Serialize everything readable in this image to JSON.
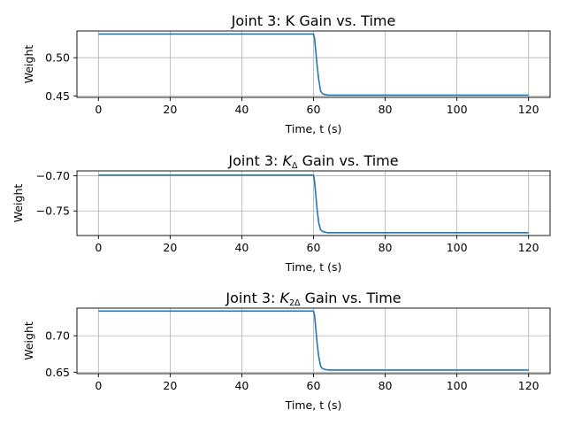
{
  "chart_data": [
    {
      "type": "line",
      "title": "Joint 3: K Gain vs. Time",
      "xlabel": "Time, t (s)",
      "ylabel": "Weight",
      "xlim": [
        -6,
        126
      ],
      "ylim": [
        0.448,
        0.535
      ],
      "xticks": [
        0,
        20,
        40,
        60,
        80,
        100,
        120
      ],
      "yticks": [
        0.45,
        0.5
      ],
      "ytick_labels": [
        "0.45",
        "0.50"
      ],
      "grid": true,
      "color": "#1f77b4",
      "series": [
        {
          "x": [
            0,
            60,
            60.3,
            60.6,
            61,
            61.5,
            62,
            62.5,
            63,
            64,
            65,
            70,
            120
          ],
          "y": [
            0.531,
            0.531,
            0.525,
            0.51,
            0.49,
            0.47,
            0.456,
            0.453,
            0.452,
            0.451,
            0.451,
            0.451,
            0.451
          ]
        }
      ]
    },
    {
      "type": "line",
      "title": "Joint 3: K_Δ Gain vs. Time",
      "title_parts": {
        "pre": "Joint 3: ",
        "sym": "K",
        "sub": "Δ",
        "post": " Gain vs. Time"
      },
      "xlabel": "Time, t (s)",
      "ylabel": "Weight",
      "xlim": [
        -6,
        126
      ],
      "ylim": [
        -0.785,
        -0.693
      ],
      "xticks": [
        0,
        20,
        40,
        60,
        80,
        100,
        120
      ],
      "yticks": [
        -0.7,
        -0.75
      ],
      "ytick_labels": [
        "−0.70",
        "−0.75"
      ],
      "grid": true,
      "color": "#1f77b4",
      "series": [
        {
          "x": [
            0,
            60,
            60.3,
            60.6,
            61,
            61.5,
            62,
            62.5,
            63,
            64,
            65,
            70,
            120
          ],
          "y": [
            -0.699,
            -0.699,
            -0.708,
            -0.725,
            -0.748,
            -0.768,
            -0.777,
            -0.779,
            -0.78,
            -0.781,
            -0.781,
            -0.781,
            -0.781
          ]
        }
      ]
    },
    {
      "type": "line",
      "title": "Joint 3: K_2Δ Gain vs. Time",
      "title_parts": {
        "pre": "Joint 3: ",
        "sym": "K",
        "sub": "2Δ",
        "post": " Gain vs. Time"
      },
      "xlabel": "Time, t (s)",
      "ylabel": "Weight",
      "xlim": [
        -6,
        126
      ],
      "ylim": [
        0.648,
        0.738
      ],
      "xticks": [
        0,
        20,
        40,
        60,
        80,
        100,
        120
      ],
      "yticks": [
        0.65,
        0.7
      ],
      "ytick_labels": [
        "0.65",
        "0.70"
      ],
      "grid": true,
      "color": "#1f77b4",
      "series": [
        {
          "x": [
            0,
            60,
            60.3,
            60.6,
            61,
            61.5,
            62,
            62.5,
            63,
            64,
            65,
            70,
            120
          ],
          "y": [
            0.734,
            0.734,
            0.728,
            0.712,
            0.69,
            0.67,
            0.658,
            0.655,
            0.654,
            0.653,
            0.653,
            0.653,
            0.653
          ]
        }
      ]
    }
  ]
}
